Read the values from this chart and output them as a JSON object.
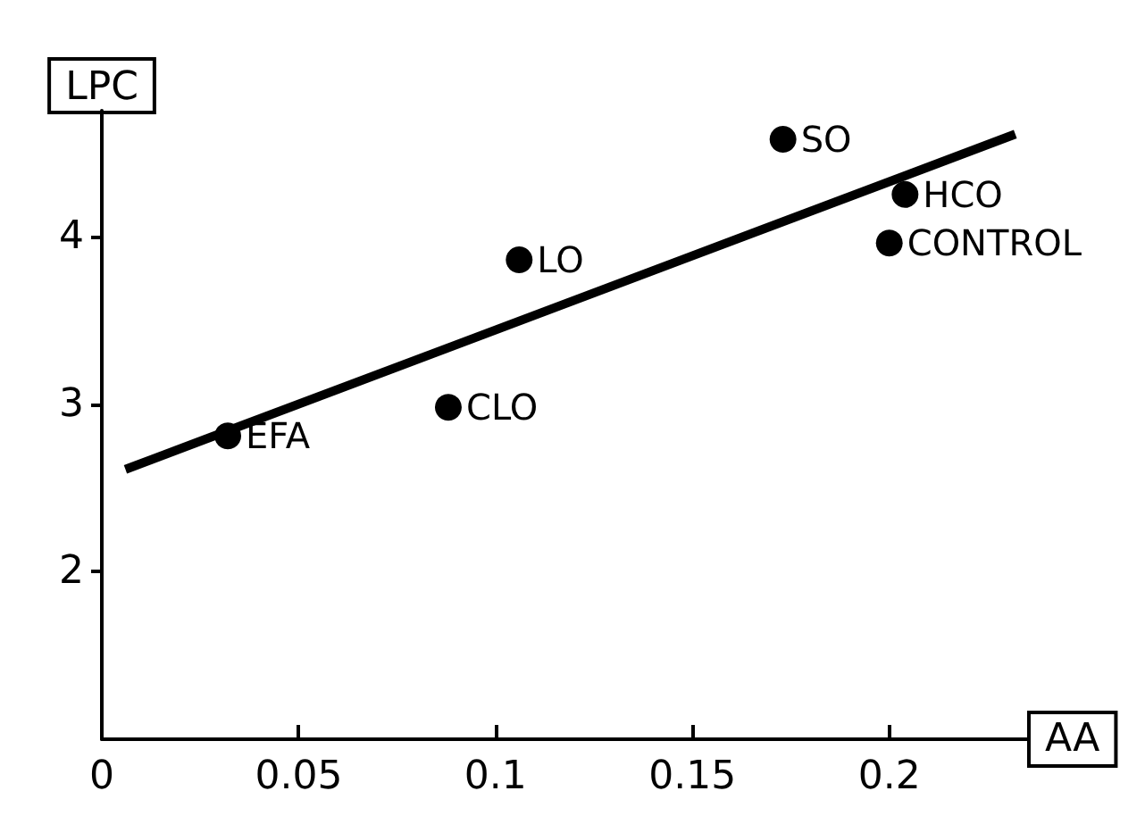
{
  "chart_data": {
    "type": "scatter",
    "xlabel": "AA",
    "ylabel": "LPC",
    "xlim": [
      0,
      0.235
    ],
    "xticks": [
      0,
      0.05,
      0.1,
      0.15,
      0.2
    ],
    "ylim": [
      1,
      4.75
    ],
    "yticks": [
      2,
      3,
      4
    ],
    "grid": false,
    "marker": "circle",
    "series": [
      {
        "color": "#000000",
        "x": [
          0.032,
          0.088,
          0.106,
          0.173,
          0.204,
          0.2
        ],
        "values": [
          2.81,
          2.98,
          3.86,
          4.58,
          4.25,
          3.96
        ]
      },
      {
        "type": "line",
        "color": "#000000",
        "marker": "none",
        "line_style": "solid",
        "x": [
          0.006,
          0.232
        ],
        "values": [
          2.61,
          4.61
        ]
      }
    ],
    "annotations": [
      {
        "text": "EFA",
        "x": 0.032,
        "y": 2.81
      },
      {
        "text": "CLO",
        "x": 0.088,
        "y": 2.98
      },
      {
        "text": "LO",
        "x": 0.106,
        "y": 3.86
      },
      {
        "text": "SO",
        "x": 0.173,
        "y": 4.58
      },
      {
        "text": "HCO",
        "x": 0.204,
        "y": 4.25
      },
      {
        "text": "CONTROL",
        "x": 0.2,
        "y": 3.96
      }
    ]
  }
}
